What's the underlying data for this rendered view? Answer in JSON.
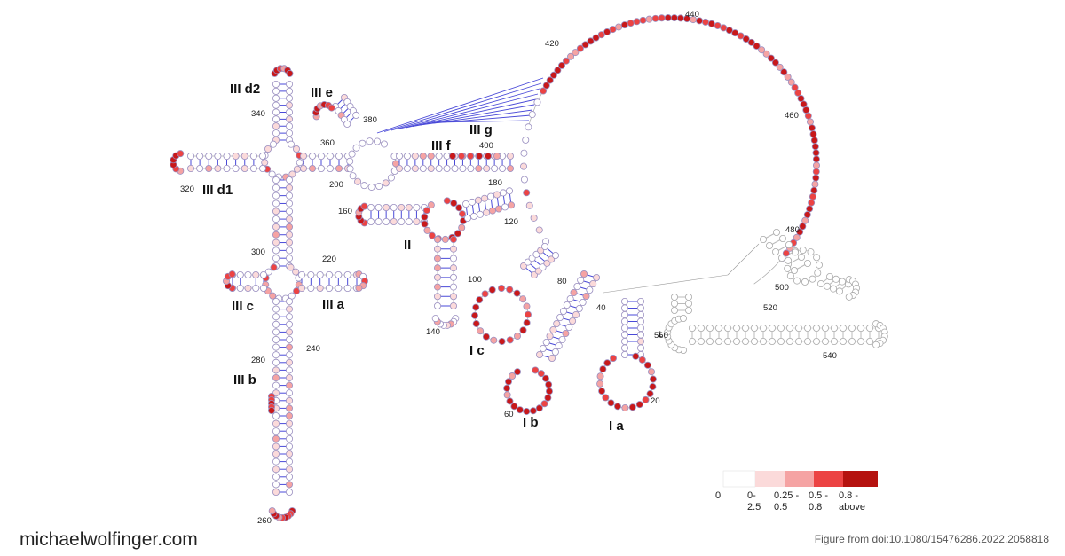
{
  "domain_labels": {
    "IIId2": "III d2",
    "IIIe": "III e",
    "IIId1": "III d1",
    "IIIc": "III c",
    "IIIa": "III a",
    "IIIb": "III b",
    "IIIf": "III f",
    "IIIg": "III g",
    "II": "II",
    "Ic": "I c",
    "Ib": "I b",
    "Ia": "I a"
  },
  "position_labels": [
    "20",
    "40",
    "60",
    "80",
    "100",
    "120",
    "140",
    "160",
    "180",
    "200",
    "220",
    "240",
    "260",
    "280",
    "300",
    "320",
    "340",
    "360",
    "380",
    "400",
    "420",
    "440",
    "460",
    "480",
    "500",
    "520",
    "540",
    "560",
    "1"
  ],
  "legend": {
    "items": [
      {
        "label": "0",
        "color": "#ffffff"
      },
      {
        "label": "0-\n2.5",
        "color": "#fbdada"
      },
      {
        "label": "0.25 -\n0.5",
        "color": "#f5a3a3"
      },
      {
        "label": "0.5 -\n0.8",
        "color": "#ec4343"
      },
      {
        "label": "0.8 -\nabove",
        "color": "#b5120f"
      }
    ]
  },
  "colors": {
    "pair_line": "#4a4ad8",
    "nucleotide_outline": "#9a8fc0",
    "backbone": "#999999"
  },
  "footer": {
    "site": "michaelwolfinger.com",
    "citation": "Figure from doi:10.1080/15476286.2022.2058818"
  }
}
